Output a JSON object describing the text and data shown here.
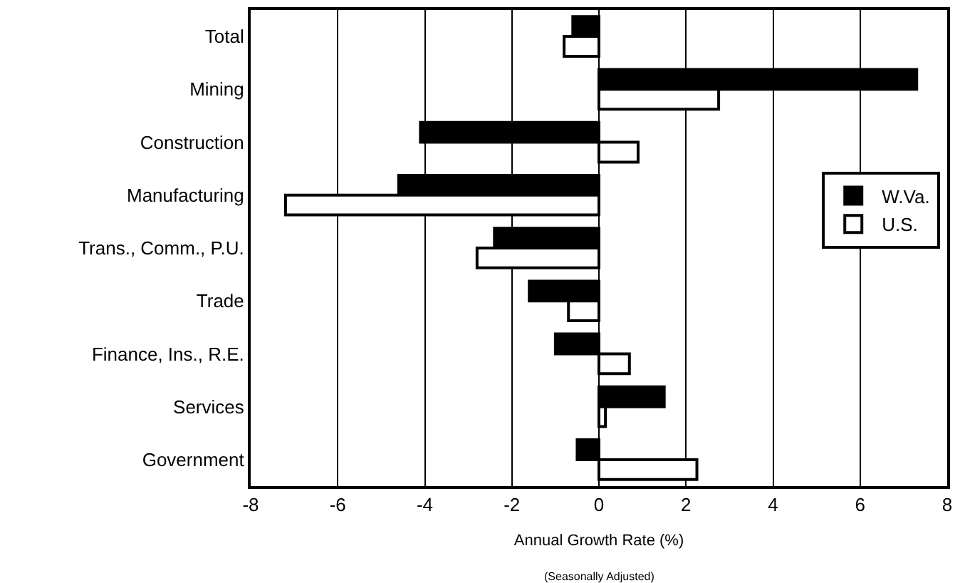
{
  "chart_data": {
    "type": "bar",
    "orientation": "horizontal",
    "categories": [
      "Total",
      "Mining",
      "Construction",
      "Manufacturing",
      "Trans., Comm., P.U.",
      "Trade",
      "Finance, Ins., R.E.",
      "Services",
      "Government"
    ],
    "series": [
      {
        "name": "W.Va.",
        "color": "#000000",
        "values": [
          -0.6,
          7.3,
          -4.1,
          -4.6,
          -2.4,
          -1.6,
          -1.0,
          1.5,
          -0.5
        ]
      },
      {
        "name": "U.S.",
        "color": "#ffffff",
        "values": [
          -0.8,
          2.75,
          0.9,
          -7.2,
          -2.8,
          -0.7,
          0.7,
          0.15,
          2.25
        ]
      }
    ],
    "xlim": [
      -8,
      8
    ],
    "xticks": [
      -8,
      -6,
      -4,
      -2,
      0,
      2,
      4,
      6,
      8
    ],
    "xlabel": "Annual Growth Rate (%)",
    "annotations": [
      "(Seasonally Adjusted)"
    ],
    "grid": "x",
    "legend": "right"
  }
}
